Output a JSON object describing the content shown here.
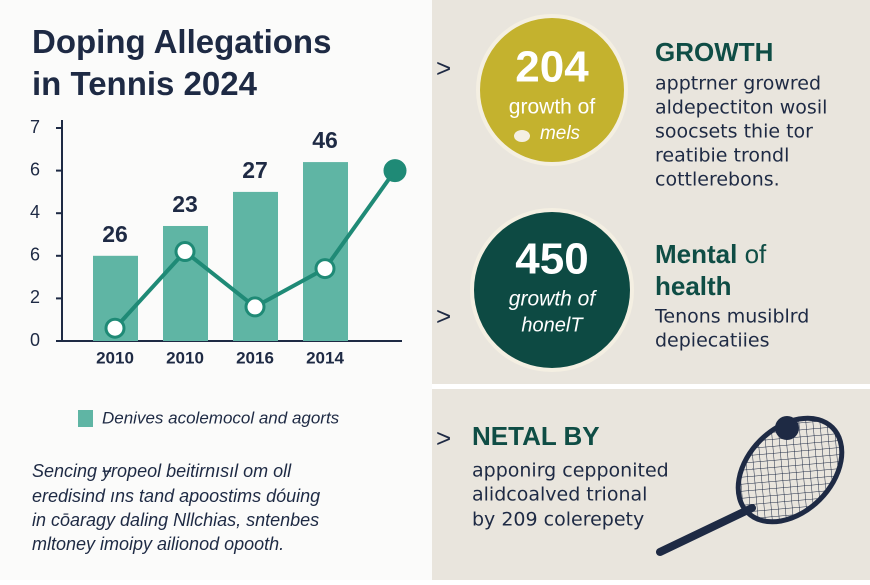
{
  "chart_data": {
    "type": "bar",
    "title": "Doping Allegations in Tennis 2024",
    "categories": [
      "2010",
      "2010",
      "2016",
      "2014",
      null
    ],
    "series": [
      {
        "name": "Denives acolemocol and agorts",
        "color": "#5fb5a4",
        "values": [
          2.0,
          2.7,
          3.5,
          4.2,
          null
        ]
      },
      {
        "type": "line",
        "color": "#1f8a76",
        "values": [
          0.3,
          2.1,
          0.8,
          1.7,
          4.0
        ]
      }
    ],
    "annotations": [
      "26",
      "23",
      "27",
      "46",
      null
    ],
    "ylim": [
      0,
      5
    ],
    "yticks": [
      0,
      {
        "value": 1,
        "label": "2"
      },
      {
        "value": 2,
        "label": "6"
      },
      {
        "value": 3,
        "label": "4"
      },
      {
        "value": 4,
        "label": "6"
      },
      {
        "value": 5,
        "label": "7"
      }
    ],
    "grid": false
  },
  "note": {
    "lines": [
      "Sencing ɏropeol beitirnısıl om oll",
      "eredisind ıns tand apoostims dóuing",
      "in cōaragy daling Nllchias, sntenbes",
      "mltoney imoipy ailionod opooth."
    ]
  },
  "panels": [
    {
      "number": "204",
      "caption": "growth of",
      "sub": "mels",
      "heading": "GROWTH",
      "lines": [
        "apptrner growred",
        "aldepectiton wosil",
        "soocsets thie tor",
        "reatibie trondl",
        "cottlerebons."
      ]
    },
    {
      "number": "450",
      "caption": "growth of",
      "sub": "honelT",
      "heading": "Mental",
      "heading_light": "of",
      "heading2": "health",
      "lines": [
        "Tenons musiblrd",
        "depiecatiies"
      ]
    },
    {
      "heading": "NETAL BY",
      "lines": [
        "apponirg cepponited",
        "alidcoalved trional",
        "by 209 colerepety"
      ]
    }
  ]
}
